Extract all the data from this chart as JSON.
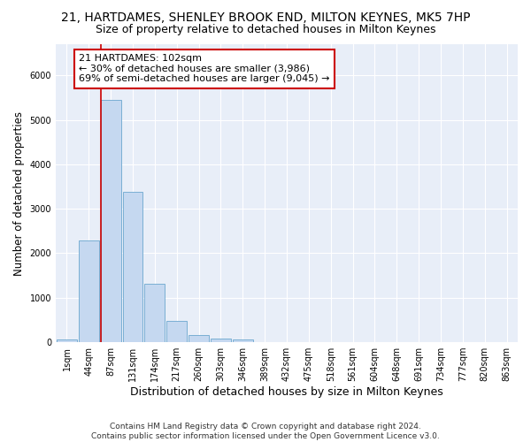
{
  "title": "21, HARTDAMES, SHENLEY BROOK END, MILTON KEYNES, MK5 7HP",
  "subtitle": "Size of property relative to detached houses in Milton Keynes",
  "xlabel": "Distribution of detached houses by size in Milton Keynes",
  "ylabel": "Number of detached properties",
  "footer_line1": "Contains HM Land Registry data © Crown copyright and database right 2024.",
  "footer_line2": "Contains public sector information licensed under the Open Government Licence v3.0.",
  "categories": [
    "1sqm",
    "44sqm",
    "87sqm",
    "131sqm",
    "174sqm",
    "217sqm",
    "260sqm",
    "303sqm",
    "346sqm",
    "389sqm",
    "432sqm",
    "475sqm",
    "518sqm",
    "561sqm",
    "604sqm",
    "648sqm",
    "691sqm",
    "734sqm",
    "777sqm",
    "820sqm",
    "863sqm"
  ],
  "values": [
    60,
    2280,
    5450,
    3380,
    1310,
    480,
    160,
    80,
    60,
    0,
    0,
    0,
    0,
    0,
    0,
    0,
    0,
    0,
    0,
    0,
    0
  ],
  "bar_color": "#c5d8f0",
  "bar_edge_color": "#7aafd4",
  "vline_color": "#cc0000",
  "annotation_text": "21 HARTDAMES: 102sqm\n← 30% of detached houses are smaller (3,986)\n69% of semi-detached houses are larger (9,045) →",
  "annotation_box_color": "white",
  "annotation_box_edge_color": "#cc0000",
  "ylim": [
    0,
    6700
  ],
  "background_color": "#e8eef8",
  "grid_color": "white",
  "title_fontsize": 10,
  "subtitle_fontsize": 9,
  "tick_fontsize": 7,
  "ylabel_fontsize": 8.5,
  "xlabel_fontsize": 9,
  "footer_fontsize": 6.5
}
